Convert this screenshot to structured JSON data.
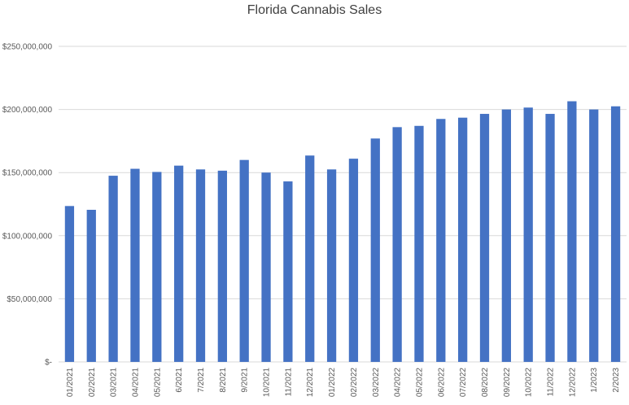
{
  "chart_data": {
    "type": "bar",
    "title": "Florida Cannabis Sales",
    "xlabel": "",
    "ylabel": "",
    "categories": [
      "01/2021",
      "02/2021",
      "03/2021",
      "04/2021",
      "05/2021",
      "6/2021",
      "7/2021",
      "8/2021",
      "9/2021",
      "10/2021",
      "11/2021",
      "12/2021",
      "01/2022",
      "02/2022",
      "03/2022",
      "04/2022",
      "05/2022",
      "06/2022",
      "07/2022",
      "08/2022",
      "09/2022",
      "10/2022",
      "11/2022",
      "12/2022",
      "1/2023",
      "2/2023"
    ],
    "values": [
      123500000,
      120500000,
      147500000,
      153000000,
      150500000,
      155500000,
      152500000,
      151500000,
      160000000,
      150000000,
      143000000,
      163500000,
      152500000,
      161000000,
      177000000,
      186000000,
      187000000,
      192500000,
      193500000,
      196500000,
      200000000,
      201500000,
      196500000,
      206500000,
      200000000,
      202500000
    ],
    "ylim": [
      0,
      250000000
    ],
    "yticks": [
      0,
      50000000,
      100000000,
      150000000,
      200000000,
      250000000
    ],
    "ytick_labels": [
      "$-",
      "$50,000,000",
      "$100,000,000",
      "$150,000,000",
      "$200,000,000",
      "$250,000,000"
    ],
    "grid": true,
    "bar_color": "#4472C4",
    "grid_color": "#D9D9D9"
  }
}
